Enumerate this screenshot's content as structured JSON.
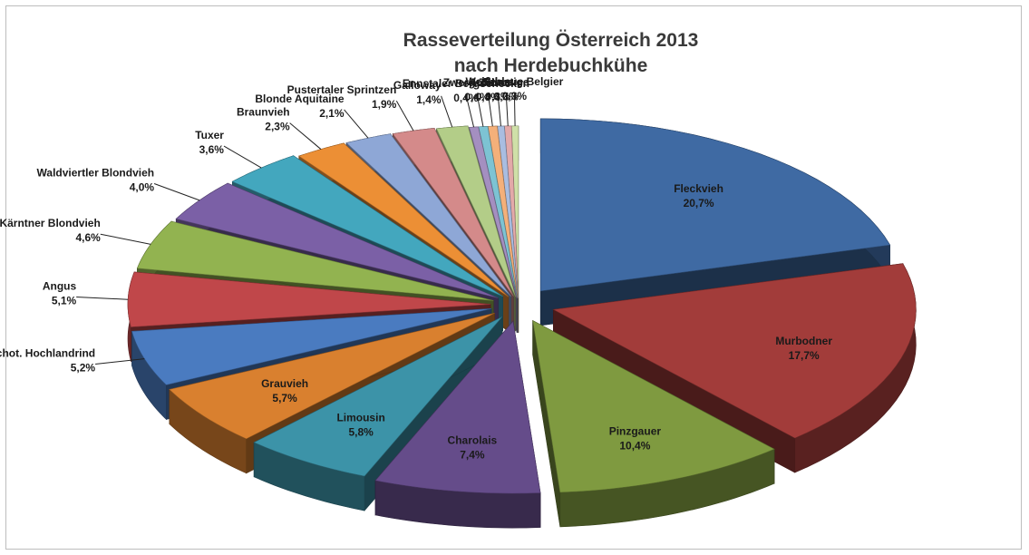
{
  "chart_data": {
    "type": "pie",
    "title": "Rasseverteilung Österreich 2013",
    "subtitle": "nach Herdebuchkühe",
    "slices": [
      {
        "name": "Fleckvieh",
        "value": 20.7,
        "label": "20,7%",
        "color": "#3f6aa3"
      },
      {
        "name": "Murbodner",
        "value": 17.7,
        "label": "17,7%",
        "color": "#a23c3a"
      },
      {
        "name": "Pinzgauer",
        "value": 10.4,
        "label": "10,4%",
        "color": "#7f9a40"
      },
      {
        "name": "Charolais",
        "value": 7.4,
        "label": "7,4%",
        "color": "#654c8a"
      },
      {
        "name": "Limousin",
        "value": 5.8,
        "label": "5,8%",
        "color": "#3c93a8"
      },
      {
        "name": "Grauvieh",
        "value": 5.7,
        "label": "5,7%",
        "color": "#d9802f"
      },
      {
        "name": "Schot. Hochlandrind",
        "value": 5.2,
        "label": "5,2%",
        "color": "#4a7bc0"
      },
      {
        "name": "Angus",
        "value": 5.1,
        "label": "5,1%",
        "color": "#c0474a"
      },
      {
        "name": "Kärntner Blondvieh",
        "value": 4.6,
        "label": "4,6%",
        "color": "#92b350"
      },
      {
        "name": "Waldviertler Blondvieh",
        "value": 4.0,
        "label": "4,0%",
        "color": "#7b60a6"
      },
      {
        "name": "Tuxer",
        "value": 3.6,
        "label": "3,6%",
        "color": "#43a7be"
      },
      {
        "name": "Braunvieh",
        "value": 2.3,
        "label": "2,3%",
        "color": "#ec8f35"
      },
      {
        "name": "Blonde Aquitaine",
        "value": 2.1,
        "label": "2,1%",
        "color": "#8ea7d6"
      },
      {
        "name": "Pustertaler Sprintzen",
        "value": 1.9,
        "label": "1,9%",
        "color": "#d48a8a"
      },
      {
        "name": "Galloway",
        "value": 1.4,
        "label": "1,4%",
        "color": "#b3cd88"
      },
      {
        "name": "Ennstaler Bergschecken",
        "value": 0.4,
        "label": "0,4%",
        "color": "#a48fc0"
      },
      {
        "name": "Zwerg-Zebus",
        "value": 0.4,
        "label": "0,4%",
        "color": "#7dc3d3"
      },
      {
        "name": "Aubrac",
        "value": 0.4,
        "label": "0,4%",
        "color": "#f4b07a"
      },
      {
        "name": "Salers",
        "value": 0.3,
        "label": "0,3%",
        "color": "#a9bde0"
      },
      {
        "name": "Sonstige",
        "value": 0.3,
        "label": "0,3%",
        "color": "#e3a9a9"
      },
      {
        "name": "Weiß-blaue Belgier",
        "value": 0.3,
        "label": "0,3%",
        "color": "#cfe0a8"
      }
    ],
    "style": "3d-exploded-pie"
  }
}
